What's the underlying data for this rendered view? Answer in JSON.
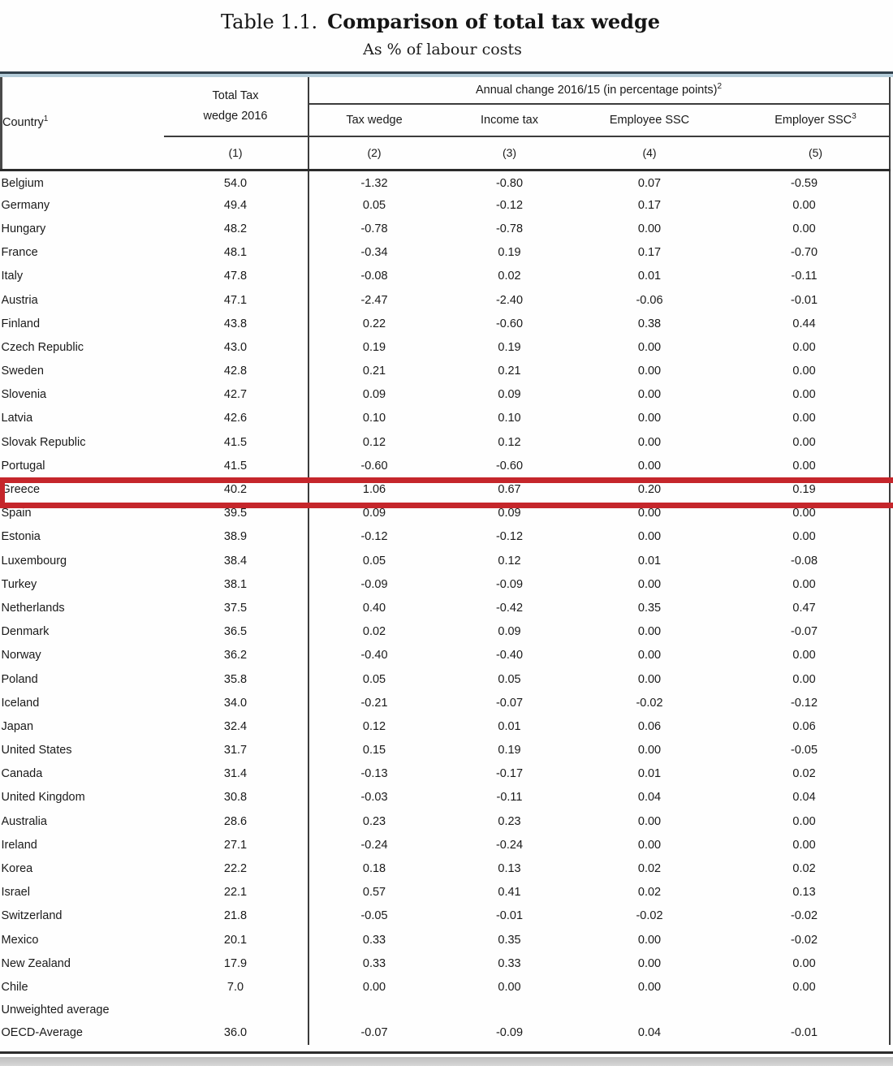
{
  "title": {
    "prefix": "Table 1.1.",
    "main": "Comparison of total tax wedge",
    "subtitle": "As % of labour costs"
  },
  "table": {
    "header": {
      "country": "Country",
      "country_sup": "1",
      "col1_line1": "Total Tax",
      "col1_line2": "wedge 2016",
      "group": "Annual change 2016/15 (in percentage points)",
      "group_sup": "2",
      "sub1": "Tax wedge",
      "sub2": "Income tax",
      "sub3": "Employee SSC",
      "sub4": "Employer SSC",
      "sub4_sup": "3",
      "n1": "(1)",
      "n2": "(2)",
      "n3": "(3)",
      "n4": "(4)",
      "n5": "(5)"
    },
    "rows": [
      {
        "country": "Belgium",
        "values": [
          "54.0",
          "-1.32",
          "-0.80",
          "0.07",
          "-0.59"
        ]
      },
      {
        "country": "Germany",
        "values": [
          "49.4",
          "0.05",
          "-0.12",
          "0.17",
          "0.00"
        ]
      },
      {
        "country": "Hungary",
        "values": [
          "48.2",
          "-0.78",
          "-0.78",
          "0.00",
          "0.00"
        ]
      },
      {
        "country": "France",
        "values": [
          "48.1",
          "-0.34",
          "0.19",
          "0.17",
          "-0.70"
        ]
      },
      {
        "country": "Italy",
        "values": [
          "47.8",
          "-0.08",
          "0.02",
          "0.01",
          "-0.11"
        ]
      },
      {
        "country": "Austria",
        "values": [
          "47.1",
          "-2.47",
          "-2.40",
          "-0.06",
          "-0.01"
        ]
      },
      {
        "country": "Finland",
        "values": [
          "43.8",
          "0.22",
          "-0.60",
          "0.38",
          "0.44"
        ]
      },
      {
        "country": "Czech Republic",
        "values": [
          "43.0",
          "0.19",
          "0.19",
          "0.00",
          "0.00"
        ]
      },
      {
        "country": "Sweden",
        "values": [
          "42.8",
          "0.21",
          "0.21",
          "0.00",
          "0.00"
        ]
      },
      {
        "country": "Slovenia",
        "values": [
          "42.7",
          "0.09",
          "0.09",
          "0.00",
          "0.00"
        ]
      },
      {
        "country": "Latvia",
        "values": [
          "42.6",
          "0.10",
          "0.10",
          "0.00",
          "0.00"
        ]
      },
      {
        "country": "Slovak Republic",
        "values": [
          "41.5",
          "0.12",
          "0.12",
          "0.00",
          "0.00"
        ]
      },
      {
        "country": "Portugal",
        "values": [
          "41.5",
          "-0.60",
          "-0.60",
          "0.00",
          "0.00"
        ]
      },
      {
        "country": "Greece",
        "values": [
          "40.2",
          "1.06",
          "0.67",
          "0.20",
          "0.19"
        ],
        "highlight": true
      },
      {
        "country": "Spain",
        "values": [
          "39.5",
          "0.09",
          "0.09",
          "0.00",
          "0.00"
        ]
      },
      {
        "country": "Estonia",
        "values": [
          "38.9",
          "-0.12",
          "-0.12",
          "0.00",
          "0.00"
        ]
      },
      {
        "country": "Luxembourg",
        "values": [
          "38.4",
          "0.05",
          "0.12",
          "0.01",
          "-0.08"
        ]
      },
      {
        "country": "Turkey",
        "values": [
          "38.1",
          "-0.09",
          "-0.09",
          "0.00",
          "0.00"
        ]
      },
      {
        "country": "Netherlands",
        "values": [
          "37.5",
          "0.40",
          "-0.42",
          "0.35",
          "0.47"
        ]
      },
      {
        "country": "Denmark",
        "values": [
          "36.5",
          "0.02",
          "0.09",
          "0.00",
          "-0.07"
        ]
      },
      {
        "country": "Norway",
        "values": [
          "36.2",
          "-0.40",
          "-0.40",
          "0.00",
          "0.00"
        ]
      },
      {
        "country": "Poland",
        "values": [
          "35.8",
          "0.05",
          "0.05",
          "0.00",
          "0.00"
        ]
      },
      {
        "country": "Iceland",
        "values": [
          "34.0",
          "-0.21",
          "-0.07",
          "-0.02",
          "-0.12"
        ]
      },
      {
        "country": "Japan",
        "values": [
          "32.4",
          "0.12",
          "0.01",
          "0.06",
          "0.06"
        ]
      },
      {
        "country": "United States",
        "values": [
          "31.7",
          "0.15",
          "0.19",
          "0.00",
          "-0.05"
        ]
      },
      {
        "country": "Canada",
        "values": [
          "31.4",
          "-0.13",
          "-0.17",
          "0.01",
          "0.02"
        ]
      },
      {
        "country": "United Kingdom",
        "values": [
          "30.8",
          "-0.03",
          "-0.11",
          "0.04",
          "0.04"
        ]
      },
      {
        "country": "Australia",
        "values": [
          "28.6",
          "0.23",
          "0.23",
          "0.00",
          "0.00"
        ]
      },
      {
        "country": "Ireland",
        "values": [
          "27.1",
          "-0.24",
          "-0.24",
          "0.00",
          "0.00"
        ]
      },
      {
        "country": "Korea",
        "values": [
          "22.2",
          "0.18",
          "0.13",
          "0.02",
          "0.02"
        ]
      },
      {
        "country": "Israel",
        "values": [
          "22.1",
          "0.57",
          "0.41",
          "0.02",
          "0.13"
        ]
      },
      {
        "country": "Switzerland",
        "values": [
          "21.8",
          "-0.05",
          "-0.01",
          "-0.02",
          "-0.02"
        ]
      },
      {
        "country": "Mexico",
        "values": [
          "20.1",
          "0.33",
          "0.35",
          "0.00",
          "-0.02"
        ]
      },
      {
        "country": "New Zealand",
        "values": [
          "17.9",
          "0.33",
          "0.33",
          "0.00",
          "0.00"
        ]
      },
      {
        "country": "Chile",
        "values": [
          "7.0",
          "0.00",
          "0.00",
          "0.00",
          "0.00"
        ]
      },
      {
        "country": "Unweighted average",
        "values": [
          "",
          "",
          "",
          "",
          ""
        ],
        "label_only": true
      },
      {
        "country": "OECD-Average",
        "values": [
          "36.0",
          "-0.07",
          "-0.09",
          "0.04",
          "-0.01"
        ],
        "last": true
      }
    ]
  },
  "colors": {
    "highlight_red": "#c5262b",
    "topline_dark": "#31404c",
    "topline_blue": "#b3cbd8",
    "rule_dark": "#3c3c3c",
    "text": "#1a1a1a"
  }
}
